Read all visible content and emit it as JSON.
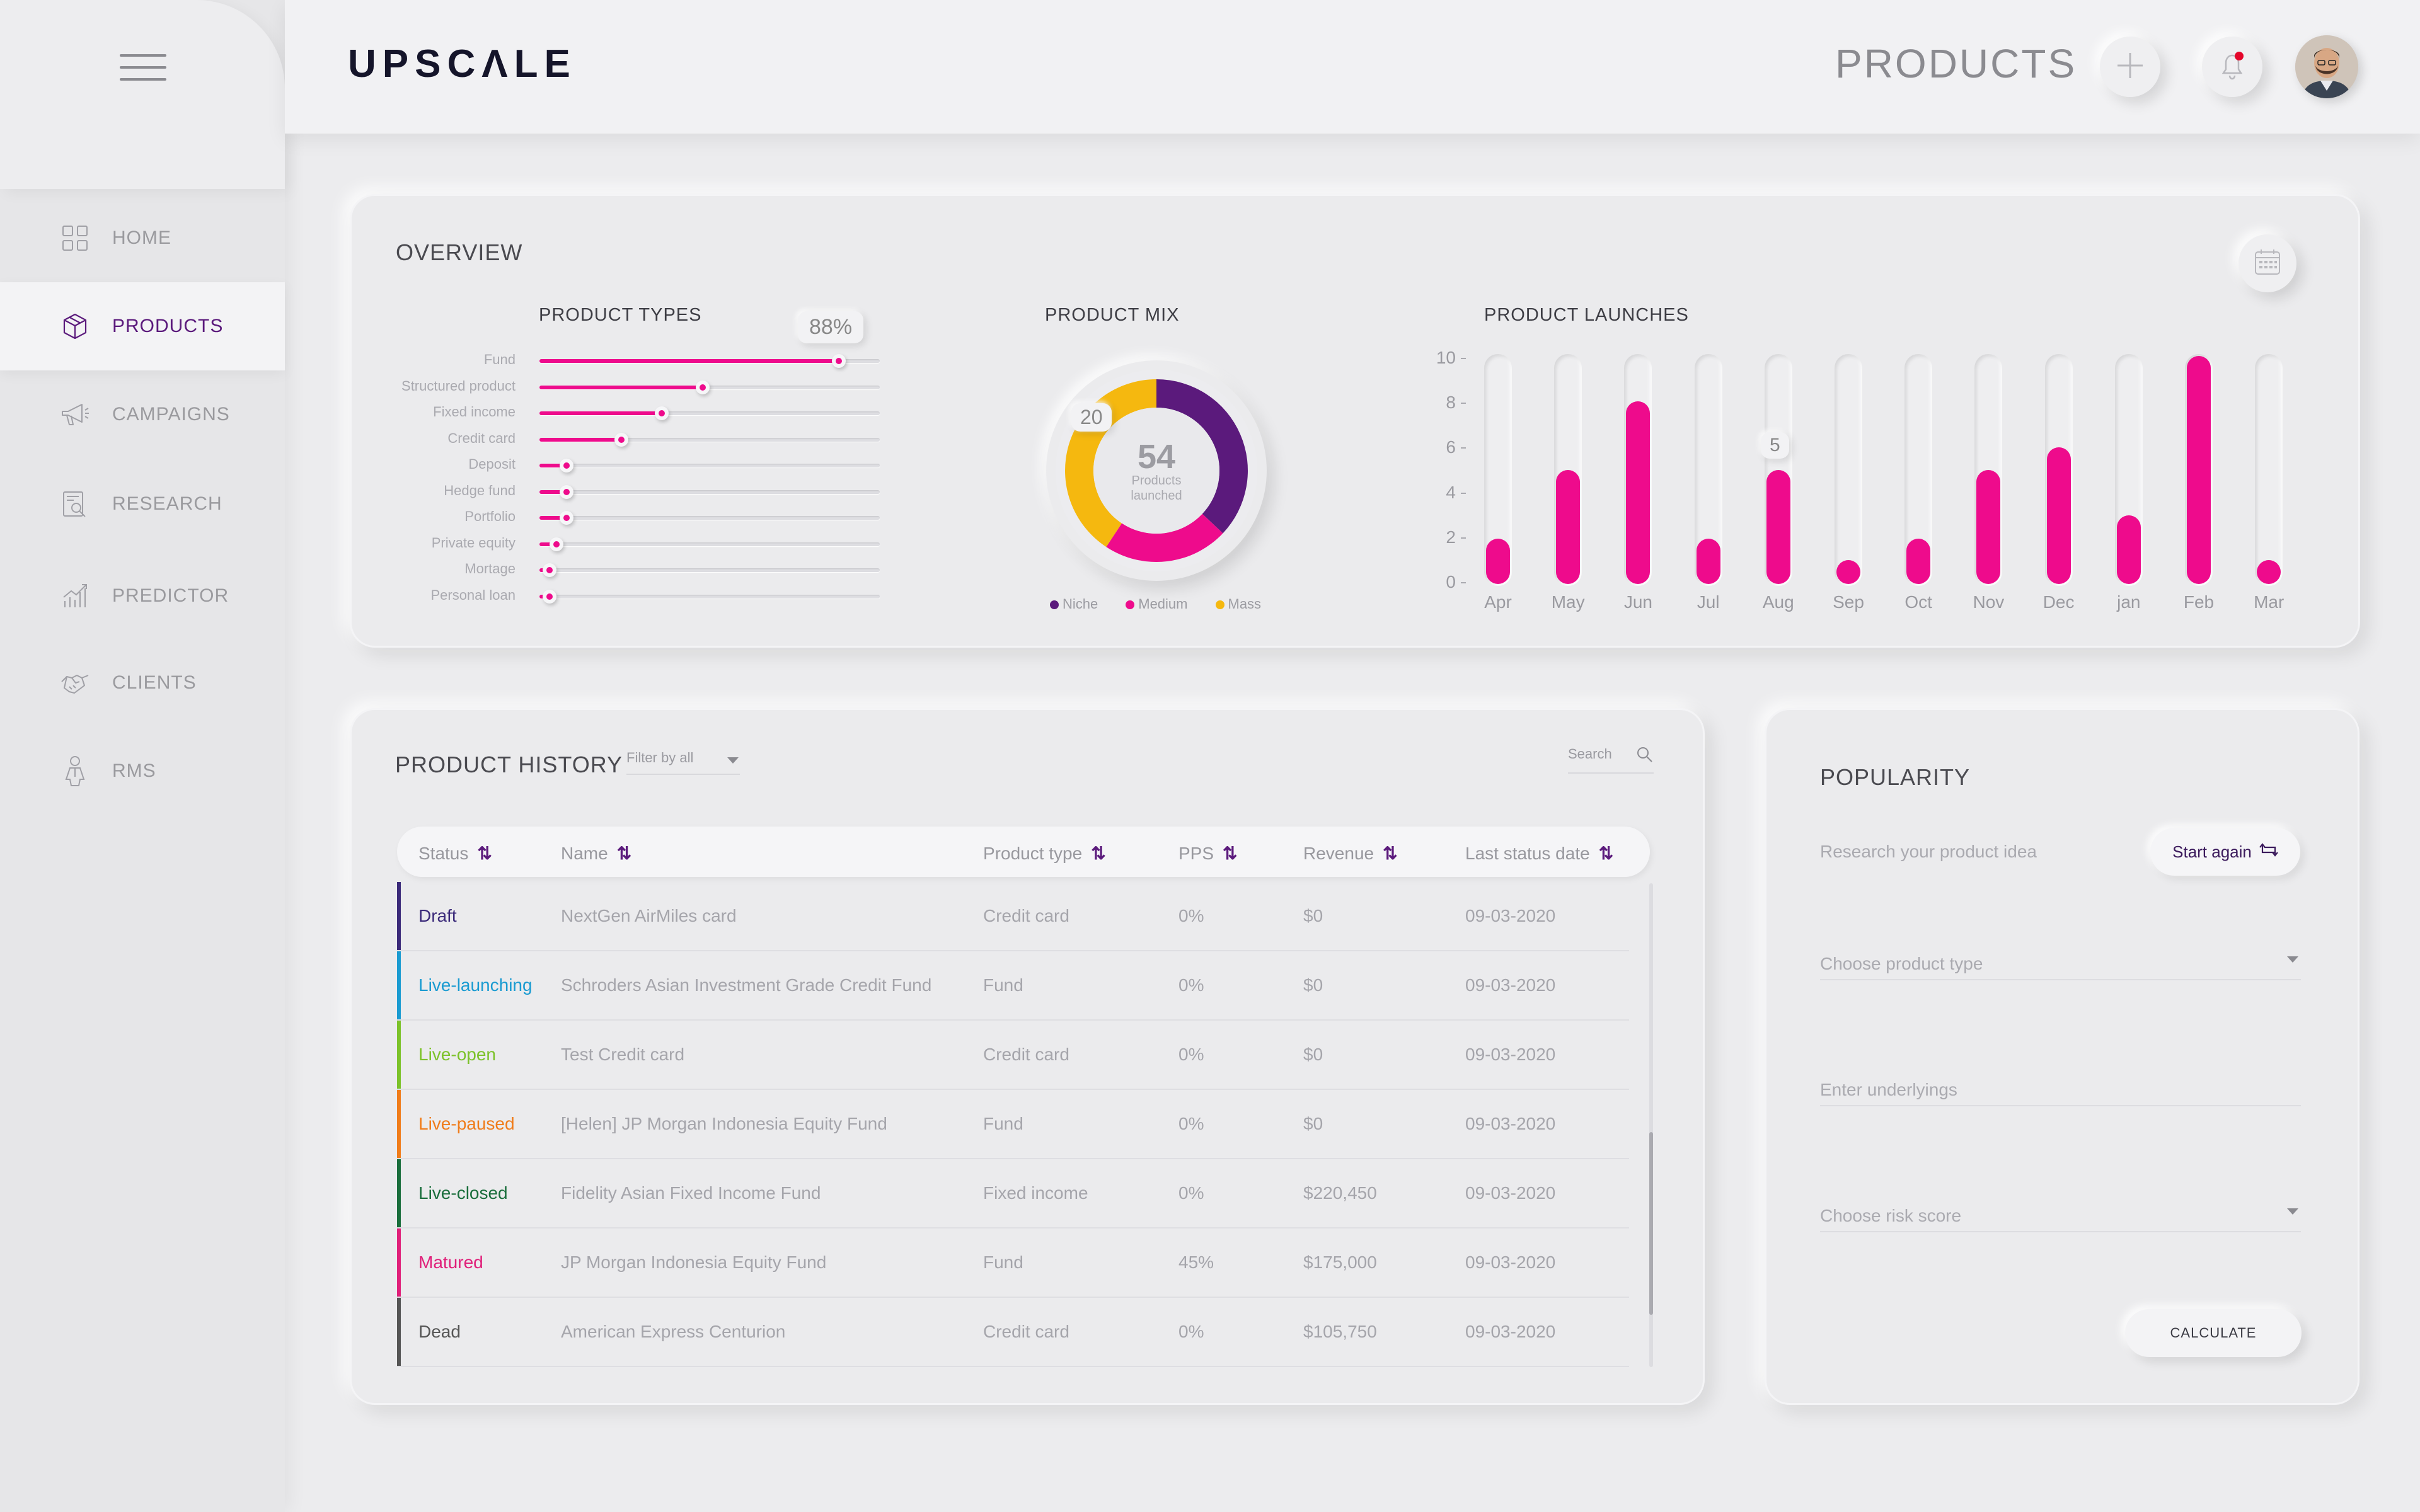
{
  "app": {
    "logo": "UPSCΛLE",
    "page_title": "PRODUCTS"
  },
  "sidebar": {
    "items": [
      {
        "label": "HOME",
        "icon": "home-grid-icon",
        "active": false
      },
      {
        "label": "PRODUCTS",
        "icon": "cube-icon",
        "active": true
      },
      {
        "label": "CAMPAIGNS",
        "icon": "megaphone-icon",
        "active": false
      },
      {
        "label": "RESEARCH",
        "icon": "research-icon",
        "active": false
      },
      {
        "label": "PREDICTOR",
        "icon": "chart-icon",
        "active": false
      },
      {
        "label": "CLIENTS",
        "icon": "handshake-icon",
        "active": false
      },
      {
        "label": "RMS",
        "icon": "person-icon",
        "active": false
      }
    ]
  },
  "overview": {
    "title": "OVERVIEW",
    "product_types": {
      "title": "PRODUCT TYPES",
      "tooltip": "88%",
      "items": [
        {
          "label": "Fund",
          "value": 88
        },
        {
          "label": "Structured product",
          "value": 48
        },
        {
          "label": "Fixed income",
          "value": 36
        },
        {
          "label": "Credit card",
          "value": 24
        },
        {
          "label": "Deposit",
          "value": 8
        },
        {
          "label": "Hedge fund",
          "value": 8
        },
        {
          "label": "Portfolio",
          "value": 8
        },
        {
          "label": "Private equity",
          "value": 5
        },
        {
          "label": "Mortage",
          "value": 3
        },
        {
          "label": "Personal loan",
          "value": 3
        }
      ]
    },
    "product_mix": {
      "title": "PRODUCT MIX",
      "center_value": "54",
      "center_label_1": "Products",
      "center_label_2": "launched",
      "tooltip": "20",
      "segments": [
        {
          "name": "Niche",
          "value": 20,
          "color": "#5b1a7c"
        },
        {
          "name": "Medium",
          "value": 12,
          "color": "#ee0b8c"
        },
        {
          "name": "Mass",
          "value": 22,
          "color": "#f5b80f"
        }
      ]
    },
    "product_launches": {
      "title": "PRODUCT LAUNCHES",
      "tooltip": "5"
    }
  },
  "chart_data": {
    "type": "bar",
    "title": "PRODUCT LAUNCHES",
    "categories": [
      "Apr",
      "May",
      "Jun",
      "Jul",
      "Aug",
      "Sep",
      "Oct",
      "Nov",
      "Dec",
      "jan",
      "Feb",
      "Mar"
    ],
    "values": [
      2,
      5,
      8,
      2,
      5,
      1,
      2,
      5,
      6,
      3,
      10,
      1
    ],
    "yticks": [
      "10",
      "8",
      "6",
      "4",
      "2",
      "0"
    ],
    "ylim": [
      0,
      10
    ],
    "grid": false
  },
  "history": {
    "title": "PRODUCT HISTORY",
    "filter": "Filter by all",
    "search_placeholder": "Search",
    "columns": [
      "Status",
      "Name",
      "Product type",
      "PPS",
      "Revenue",
      "Last status date"
    ],
    "rows": [
      {
        "status": "Draft",
        "color": "#3b2a7a",
        "name": "NextGen AirMiles card",
        "type": "Credit card",
        "pps": "0%",
        "revenue": "$0",
        "date": "09-03-2020"
      },
      {
        "status": "Live-launching",
        "color": "#1a9bd1",
        "name": "Schroders Asian Investment Grade Credit Fund",
        "type": "Fund",
        "pps": "0%",
        "revenue": "$0",
        "date": "09-03-2020"
      },
      {
        "status": "Live-open",
        "color": "#7cc22a",
        "name": "Test Credit card",
        "type": "Credit card",
        "pps": "0%",
        "revenue": "$0",
        "date": "09-03-2020"
      },
      {
        "status": "Live-paused",
        "color": "#f07c1a",
        "name": "[Helen] JP Morgan Indonesia Equity Fund",
        "type": "Fund",
        "pps": "0%",
        "revenue": "$0",
        "date": "09-03-2020"
      },
      {
        "status": "Live-closed",
        "color": "#1a6e3c",
        "name": "Fidelity Asian Fixed Income Fund",
        "type": "Fixed income",
        "pps": "0%",
        "revenue": "$220,450",
        "date": "09-03-2020"
      },
      {
        "status": "Matured",
        "color": "#e0207a",
        "name": "JP Morgan Indonesia Equity Fund",
        "type": "Fund",
        "pps": "45%",
        "revenue": "$175,000",
        "date": "09-03-2020"
      },
      {
        "status": "Dead",
        "color": "#555555",
        "name": "American Express Centurion",
        "type": "Credit card",
        "pps": "0%",
        "revenue": "$105,750",
        "date": "09-03-2020"
      }
    ]
  },
  "popularity": {
    "title": "POPULARITY",
    "subtitle": "Research your product idea",
    "start_again": "Start again",
    "product_type_placeholder": "Choose product type",
    "underlyings_placeholder": "Enter underlyings",
    "risk_placeholder": "Choose risk score",
    "calculate": "CALCULATE"
  },
  "colors": {
    "accent": "#ee0b8c",
    "purple": "#5b1a7c",
    "yellow": "#f5b80f"
  }
}
